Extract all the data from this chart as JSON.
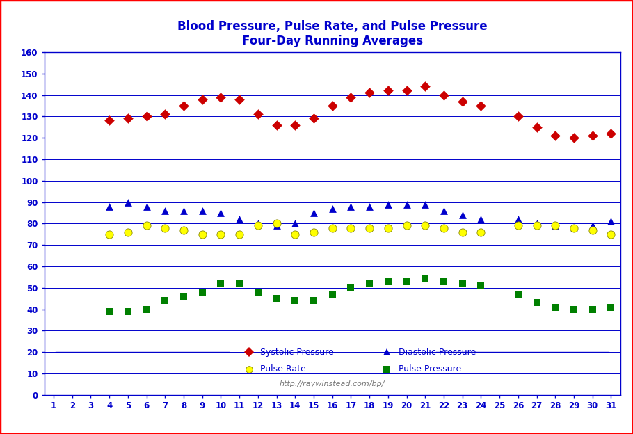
{
  "title_line1": "Blood Pressure, Pulse Rate, and Pulse Pressure",
  "title_line2": "Four-Day Running Averages",
  "title_color": "#0000CC",
  "background_color": "#FFFFFF",
  "border_color": "#FF0000",
  "url_text": "http://raywinstead.com/bp/",
  "url_color": "#777777",
  "x_values": [
    1,
    2,
    3,
    4,
    5,
    6,
    7,
    8,
    9,
    10,
    11,
    12,
    13,
    14,
    15,
    16,
    17,
    18,
    19,
    20,
    21,
    22,
    23,
    24,
    25,
    26,
    27,
    28,
    29,
    30,
    31
  ],
  "systolic": [
    null,
    null,
    null,
    128,
    129,
    130,
    131,
    135,
    138,
    139,
    138,
    131,
    126,
    126,
    129,
    135,
    139,
    141,
    142,
    142,
    144,
    140,
    137,
    135,
    null,
    130,
    125,
    121,
    120,
    121,
    122
  ],
  "diastolic": [
    null,
    null,
    null,
    88,
    90,
    88,
    86,
    86,
    86,
    85,
    82,
    80,
    79,
    80,
    85,
    87,
    88,
    88,
    89,
    89,
    89,
    86,
    84,
    82,
    null,
    82,
    80,
    79,
    78,
    79,
    81
  ],
  "pulse_rate": [
    null,
    null,
    null,
    75,
    76,
    79,
    78,
    77,
    75,
    75,
    75,
    79,
    80,
    75,
    76,
    78,
    78,
    78,
    78,
    79,
    79,
    78,
    76,
    76,
    null,
    79,
    79,
    79,
    78,
    77,
    75
  ],
  "pulse_pressure": [
    null,
    null,
    null,
    39,
    39,
    40,
    44,
    46,
    48,
    52,
    52,
    48,
    45,
    44,
    44,
    47,
    50,
    52,
    53,
    53,
    54,
    53,
    52,
    51,
    null,
    47,
    43,
    41,
    40,
    40,
    41
  ],
  "systolic_color": "#CC0000",
  "diastolic_color": "#0000CC",
  "pulse_rate_color": "#FFFF00",
  "pulse_pressure_color": "#008000",
  "ylim": [
    0,
    160
  ],
  "yticks": [
    0,
    10,
    20,
    30,
    40,
    50,
    60,
    70,
    80,
    90,
    100,
    110,
    120,
    130,
    140,
    150,
    160
  ],
  "grid_color": "#0000CC",
  "axis_color": "#0000CC",
  "tick_color": "#0000CC",
  "xlabel_color": "#0000CC",
  "ylabel_color": "#0000CC",
  "legend_line_color": "#0000CC",
  "legend_entries": [
    {
      "label": "Systolic Pressure",
      "marker": "D",
      "color": "#CC0000"
    },
    {
      "label": "Diastolic Pressure",
      "marker": "^",
      "color": "#0000CC"
    },
    {
      "label": "Pulse Rate",
      "marker": "o",
      "color": "#FFFF00",
      "edge": "#888800"
    },
    {
      "label": "Pulse Pressure",
      "marker": "s",
      "color": "#008000"
    }
  ]
}
